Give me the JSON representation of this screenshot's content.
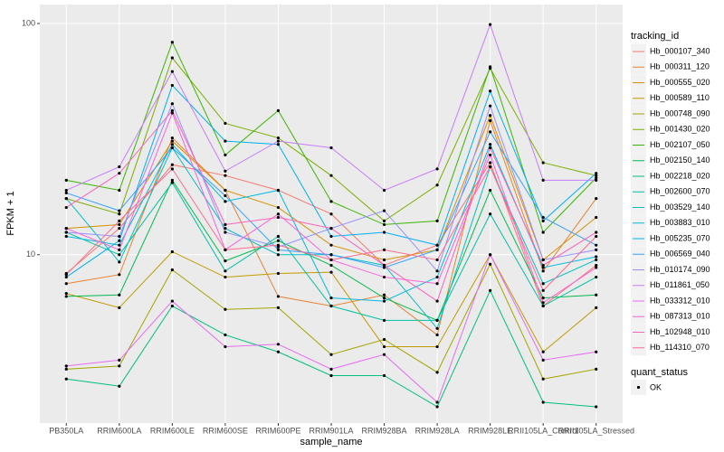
{
  "chart_data": {
    "type": "line",
    "x_label": "sample_name",
    "y_label": "FPKM + 1",
    "log_scale": true,
    "grid": true,
    "categories": [
      "PB350LA",
      "RRIM600LA",
      "RRIM600LE",
      "RRIM600SE",
      "RRIM600PE",
      "RRIM901LA",
      "RRIM928BA",
      "RRIM928LA",
      "RRIM928LE",
      "RRII105LA_Control",
      "RRII105LA_Stressed"
    ],
    "ylim": [
      1.87,
      120.8
    ],
    "yticks": [
      10,
      100
    ],
    "legend_title": "tracking_id",
    "legend_position": "right",
    "point_legend_title": "quant_status",
    "point_legend_label": "OK",
    "point_color": "#000000",
    "series": [
      {
        "name": "Hb_000107_340",
        "color": "#F8766D",
        "values": [
          8.3,
          13,
          24.5,
          22,
          19,
          15,
          9,
          11,
          25,
          6,
          9
        ]
      },
      {
        "name": "Hb_000311_120",
        "color": "#EA8331",
        "values": [
          7.5,
          8.2,
          32,
          19,
          6.6,
          6,
          6.7,
          4.5,
          38,
          8.5,
          17.5
        ]
      },
      {
        "name": "Hb_000555_020",
        "color": "#D89000",
        "values": [
          13,
          13.5,
          31,
          19,
          16,
          11,
          9.5,
          10.5,
          40,
          9.5,
          14.5
        ]
      },
      {
        "name": "Hb_000589_110",
        "color": "#C09B00",
        "values": [
          6.8,
          5.9,
          10.3,
          8,
          8.3,
          8.4,
          4,
          4,
          10,
          3.8,
          5.9
        ]
      },
      {
        "name": "Hb_000748_090",
        "color": "#A3A500",
        "values": [
          3.2,
          3.3,
          8.6,
          5.8,
          5.9,
          3.7,
          4.3,
          3.1,
          9.1,
          2.9,
          3.2
        ]
      },
      {
        "name": "Hb_001430_020",
        "color": "#7CAE00",
        "values": [
          17.5,
          15,
          71,
          37,
          32,
          22,
          14,
          20,
          64,
          25,
          22
        ]
      },
      {
        "name": "Hb_002107_050",
        "color": "#39B600",
        "values": [
          21,
          19,
          83,
          27,
          42,
          17,
          13.5,
          14,
          65,
          12.5,
          21.5
        ]
      },
      {
        "name": "Hb_002150_140",
        "color": "#00BB4E",
        "values": [
          6.6,
          6.7,
          21,
          9.4,
          11.5,
          9,
          6.5,
          5.2,
          19,
          6.5,
          6.7
        ]
      },
      {
        "name": "Hb_002218_020",
        "color": "#00BF7D",
        "values": [
          2.9,
          2.7,
          6,
          4.5,
          3.8,
          3.0,
          3.0,
          2.2,
          7.0,
          2.3,
          2.2
        ]
      },
      {
        "name": "Hb_002600_070",
        "color": "#00C1A3",
        "values": [
          12.5,
          10,
          20.5,
          8.5,
          12,
          6,
          5.2,
          5.2,
          15,
          6,
          8
        ]
      },
      {
        "name": "Hb_003529_140",
        "color": "#00BFC4",
        "values": [
          17.5,
          9.3,
          29,
          13,
          10,
          10,
          9,
          4.8,
          24,
          7.5,
          9.5
        ]
      },
      {
        "name": "Hb_003883_010",
        "color": "#00BAE0",
        "values": [
          12,
          11,
          30,
          17,
          19,
          6.5,
          6.3,
          8,
          30,
          8.8,
          9.8
        ]
      },
      {
        "name": "Hb_005235_070",
        "color": "#00B0F6",
        "values": [
          8,
          11.5,
          54,
          31,
          30,
          12,
          12.5,
          11,
          51,
          14,
          22.5
        ]
      },
      {
        "name": "Hb_006569_040",
        "color": "#35A2FF",
        "values": [
          18.5,
          15.5,
          29,
          18,
          10.5,
          10,
          8.8,
          10.5,
          34,
          14.5,
          11
        ]
      },
      {
        "name": "Hb_010174_090",
        "color": "#9590FF",
        "values": [
          12.5,
          12,
          45,
          12.5,
          10.8,
          13,
          15.5,
          8.5,
          44,
          9.5,
          10.5
        ]
      },
      {
        "name": "Hb_011861_050",
        "color": "#C77CFF",
        "values": [
          19,
          24,
          62,
          23,
          31,
          29,
          19,
          23.5,
          99,
          21,
          21
        ]
      },
      {
        "name": "Hb_033312_010",
        "color": "#E76BF3",
        "values": [
          3.3,
          3.5,
          6.3,
          4,
          4.1,
          3.2,
          3.7,
          2.3,
          10,
          3.5,
          3.8
        ]
      },
      {
        "name": "Hb_087313_010",
        "color": "#FA62DB",
        "values": [
          13,
          10.5,
          41,
          10.5,
          15,
          9.5,
          8,
          7.5,
          27,
          6.2,
          8.8
        ]
      },
      {
        "name": "Hb_102948_010",
        "color": "#FF62BC",
        "values": [
          16,
          22.5,
          42,
          13.5,
          14.5,
          13,
          9,
          6.3,
          29,
          9,
          12.5
        ]
      },
      {
        "name": "Hb_114310_070",
        "color": "#FF6C91",
        "values": [
          8.2,
          14,
          23.5,
          10.5,
          11,
          9.5,
          10.5,
          9.5,
          24,
          7,
          12
        ]
      }
    ]
  }
}
